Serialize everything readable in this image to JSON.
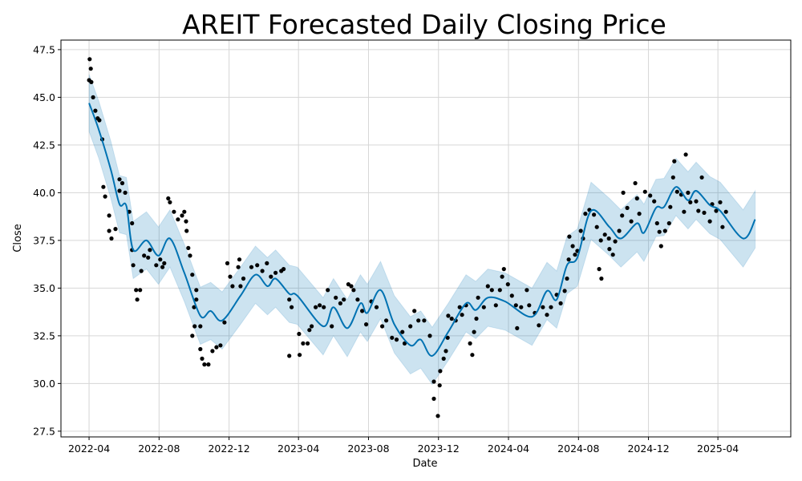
{
  "chart_data": {
    "type": "line",
    "title": "AREIT Forecasted Daily Closing Price",
    "xlabel": "Date",
    "ylabel": "Close",
    "ylim": [
      27.2,
      48.0
    ],
    "xlim": [
      "2022-02-11",
      "2025-08-06"
    ],
    "grid": true,
    "x_ticks": [
      "2022-04",
      "2022-08",
      "2022-12",
      "2023-04",
      "2023-08",
      "2023-12",
      "2024-04",
      "2024-08",
      "2024-12",
      "2025-04"
    ],
    "y_ticks": [
      27.5,
      30.0,
      32.5,
      35.0,
      37.5,
      40.0,
      42.5,
      45.0,
      47.5
    ],
    "colors": {
      "forecast": "#0072B2",
      "interval": "#0072B2",
      "observed": "#000000"
    },
    "x_origin": "2022-04-01",
    "x_unit": "days since x_origin",
    "forecast": {
      "x_days": [
        0,
        17,
        38,
        53,
        65,
        77,
        100,
        121,
        141,
        166,
        194,
        212,
        232,
        264,
        290,
        311,
        325,
        349,
        363,
        408,
        426,
        450,
        473,
        485,
        508,
        532,
        560,
        578,
        598,
        626,
        657,
        674,
        695,
        725,
        772,
        798,
        815,
        833,
        851,
        875,
        907,
        927,
        955,
        967,
        988,
        1002,
        1023,
        1044,
        1058,
        1082,
        1100,
        1140,
        1161
      ],
      "yhat": [
        44.7,
        43.3,
        41.2,
        39.4,
        39.3,
        37.0,
        37.5,
        36.7,
        37.6,
        35.8,
        33.55,
        33.8,
        33.3,
        34.6,
        35.7,
        35.1,
        35.5,
        34.7,
        34.6,
        33.0,
        34.0,
        32.9,
        34.2,
        33.7,
        34.9,
        33.1,
        32.0,
        32.3,
        31.45,
        32.7,
        34.2,
        33.85,
        34.5,
        34.3,
        33.5,
        34.85,
        34.4,
        36.2,
        36.6,
        39.05,
        38.2,
        37.6,
        38.4,
        37.9,
        39.2,
        39.25,
        40.3,
        39.6,
        40.1,
        39.35,
        39.05,
        37.6,
        38.6
      ],
      "yhat_upper": [
        46.2,
        44.8,
        42.7,
        40.9,
        40.8,
        38.5,
        39.0,
        38.2,
        39.1,
        37.3,
        35.05,
        35.3,
        34.8,
        36.1,
        37.2,
        36.6,
        37.0,
        36.2,
        36.1,
        34.5,
        35.5,
        34.4,
        35.7,
        35.2,
        36.4,
        34.6,
        33.5,
        33.8,
        32.95,
        34.2,
        35.7,
        35.35,
        36.0,
        35.8,
        35.0,
        36.35,
        35.9,
        37.7,
        38.1,
        40.55,
        39.7,
        39.1,
        39.9,
        39.4,
        40.7,
        40.75,
        41.8,
        41.1,
        41.6,
        40.85,
        40.55,
        39.1,
        40.1
      ],
      "yhat_lower": [
        43.2,
        41.8,
        39.7,
        37.9,
        37.8,
        35.5,
        36.0,
        35.2,
        36.1,
        34.3,
        32.05,
        32.3,
        31.8,
        33.1,
        34.2,
        33.6,
        34.0,
        33.2,
        33.1,
        31.5,
        32.5,
        31.4,
        32.7,
        32.2,
        33.4,
        31.6,
        30.5,
        30.8,
        29.95,
        31.2,
        32.7,
        32.35,
        33.0,
        32.8,
        32.0,
        33.35,
        32.9,
        34.7,
        35.1,
        37.55,
        36.7,
        36.1,
        36.9,
        36.4,
        37.7,
        37.75,
        38.8,
        38.1,
        38.6,
        37.85,
        37.55,
        36.1,
        37.1
      ]
    },
    "observed": [
      [
        1,
        47.0
      ],
      [
        3,
        46.5
      ],
      [
        0,
        45.9
      ],
      [
        4,
        45.8
      ],
      [
        7,
        45.0
      ],
      [
        11,
        44.3
      ],
      [
        15,
        43.9
      ],
      [
        18,
        43.8
      ],
      [
        23,
        42.8
      ],
      [
        25,
        40.3
      ],
      [
        28,
        39.8
      ],
      [
        35,
        38.8
      ],
      [
        35,
        38.0
      ],
      [
        39,
        37.6
      ],
      [
        46,
        38.1
      ],
      [
        53,
        40.7
      ],
      [
        58,
        40.5
      ],
      [
        63,
        40.0
      ],
      [
        53,
        40.1
      ],
      [
        70,
        39.0
      ],
      [
        75,
        38.4
      ],
      [
        75,
        37.0
      ],
      [
        77,
        36.2
      ],
      [
        91,
        35.9
      ],
      [
        82,
        34.9
      ],
      [
        84,
        34.4
      ],
      [
        89,
        34.9
      ],
      [
        96,
        36.7
      ],
      [
        103,
        36.6
      ],
      [
        106,
        37.0
      ],
      [
        117,
        36.2
      ],
      [
        124,
        36.5
      ],
      [
        131,
        36.3
      ],
      [
        128,
        36.1
      ],
      [
        138,
        39.7
      ],
      [
        141,
        39.5
      ],
      [
        148,
        39.0
      ],
      [
        155,
        38.6
      ],
      [
        162,
        38.8
      ],
      [
        166,
        39.0
      ],
      [
        169,
        38.5
      ],
      [
        170,
        38.0
      ],
      [
        173,
        37.1
      ],
      [
        176,
        36.7
      ],
      [
        180,
        35.7
      ],
      [
        187,
        34.9
      ],
      [
        187,
        34.4
      ],
      [
        183,
        34.0
      ],
      [
        184,
        33.0
      ],
      [
        194,
        33.0
      ],
      [
        180,
        32.5
      ],
      [
        194,
        31.8
      ],
      [
        197,
        31.3
      ],
      [
        201,
        31.0
      ],
      [
        208,
        31.0
      ],
      [
        215,
        31.7
      ],
      [
        222,
        31.9
      ],
      [
        229,
        32.0
      ],
      [
        236,
        33.2
      ],
      [
        241,
        36.3
      ],
      [
        246,
        35.6
      ],
      [
        250,
        35.1
      ],
      [
        260,
        36.1
      ],
      [
        262,
        36.5
      ],
      [
        269,
        35.5
      ],
      [
        264,
        35.1
      ],
      [
        283,
        36.1
      ],
      [
        293,
        36.2
      ],
      [
        302,
        35.9
      ],
      [
        310,
        36.3
      ],
      [
        317,
        35.6
      ],
      [
        325,
        35.8
      ],
      [
        335,
        35.9
      ],
      [
        339,
        36.0
      ],
      [
        349,
        34.4
      ],
      [
        353,
        34.0
      ],
      [
        349,
        31.45
      ],
      [
        366,
        32.6
      ],
      [
        367,
        31.5
      ],
      [
        373,
        32.1
      ],
      [
        381,
        32.1
      ],
      [
        384,
        32.8
      ],
      [
        388,
        33.0
      ],
      [
        395,
        34.0
      ],
      [
        402,
        34.1
      ],
      [
        409,
        34.0
      ],
      [
        416,
        34.9
      ],
      [
        423,
        33.0
      ],
      [
        430,
        34.5
      ],
      [
        438,
        34.2
      ],
      [
        444,
        34.4
      ],
      [
        452,
        35.2
      ],
      [
        457,
        35.1
      ],
      [
        461,
        34.9
      ],
      [
        468,
        34.4
      ],
      [
        476,
        33.8
      ],
      [
        483,
        33.1
      ],
      [
        492,
        34.3
      ],
      [
        501,
        34.0
      ],
      [
        511,
        33.0
      ],
      [
        518,
        33.3
      ],
      [
        528,
        32.4
      ],
      [
        536,
        32.3
      ],
      [
        546,
        32.7
      ],
      [
        550,
        32.1
      ],
      [
        560,
        33.0
      ],
      [
        567,
        33.8
      ],
      [
        574,
        33.3
      ],
      [
        584,
        33.3
      ],
      [
        594,
        32.5
      ],
      [
        601,
        30.1
      ],
      [
        601,
        29.2
      ],
      [
        608,
        28.3
      ],
      [
        611,
        29.9
      ],
      [
        612,
        30.65
      ],
      [
        618,
        31.3
      ],
      [
        622,
        31.7
      ],
      [
        625,
        32.4
      ],
      [
        626,
        33.55
      ],
      [
        632,
        33.4
      ],
      [
        639,
        33.3
      ],
      [
        646,
        34.0
      ],
      [
        650,
        33.6
      ],
      [
        657,
        34.1
      ],
      [
        664,
        32.1
      ],
      [
        668,
        31.5
      ],
      [
        671,
        32.7
      ],
      [
        675,
        33.4
      ],
      [
        678,
        34.5
      ],
      [
        688,
        34.0
      ],
      [
        695,
        35.1
      ],
      [
        702,
        34.9
      ],
      [
        709,
        34.1
      ],
      [
        716,
        34.9
      ],
      [
        720,
        35.6
      ],
      [
        723,
        36.0
      ],
      [
        730,
        35.2
      ],
      [
        737,
        34.6
      ],
      [
        744,
        34.1
      ],
      [
        746,
        32.9
      ],
      [
        753,
        34.0
      ],
      [
        763,
        34.9
      ],
      [
        767,
        34.1
      ],
      [
        777,
        33.7
      ],
      [
        784,
        33.05
      ],
      [
        791,
        34.0
      ],
      [
        798,
        33.6
      ],
      [
        805,
        34.0
      ],
      [
        815,
        34.65
      ],
      [
        822,
        34.2
      ],
      [
        829,
        34.85
      ],
      [
        833,
        35.5
      ],
      [
        836,
        36.5
      ],
      [
        837,
        37.7
      ],
      [
        843,
        37.2
      ],
      [
        847,
        36.75
      ],
      [
        851,
        36.95
      ],
      [
        857,
        38.0
      ],
      [
        861,
        37.6
      ],
      [
        865,
        38.9
      ],
      [
        872,
        39.1
      ],
      [
        880,
        38.85
      ],
      [
        885,
        38.2
      ],
      [
        889,
        36.0
      ],
      [
        893,
        35.5
      ],
      [
        892,
        37.5
      ],
      [
        899,
        37.8
      ],
      [
        906,
        37.6
      ],
      [
        907,
        37.05
      ],
      [
        913,
        36.75
      ],
      [
        917,
        37.45
      ],
      [
        924,
        38.0
      ],
      [
        929,
        38.8
      ],
      [
        931,
        40.0
      ],
      [
        938,
        39.2
      ],
      [
        945,
        38.5
      ],
      [
        952,
        40.5
      ],
      [
        955,
        39.7
      ],
      [
        959,
        38.9
      ],
      [
        969,
        40.05
      ],
      [
        978,
        39.85
      ],
      [
        985,
        39.55
      ],
      [
        990,
        38.4
      ],
      [
        994,
        37.95
      ],
      [
        997,
        37.2
      ],
      [
        1004,
        38.0
      ],
      [
        1011,
        38.4
      ],
      [
        1013,
        39.25
      ],
      [
        1018,
        40.8
      ],
      [
        1020,
        41.65
      ],
      [
        1025,
        40.05
      ],
      [
        1032,
        39.9
      ],
      [
        1037,
        39.0
      ],
      [
        1040,
        42.0
      ],
      [
        1044,
        40.0
      ],
      [
        1048,
        39.5
      ],
      [
        1058,
        39.55
      ],
      [
        1068,
        40.8
      ],
      [
        1062,
        39.05
      ],
      [
        1072,
        38.95
      ],
      [
        1082,
        38.5
      ],
      [
        1086,
        39.4
      ],
      [
        1093,
        39.05
      ],
      [
        1100,
        39.5
      ],
      [
        1104,
        38.2
      ],
      [
        1110,
        39.0
      ]
    ]
  }
}
